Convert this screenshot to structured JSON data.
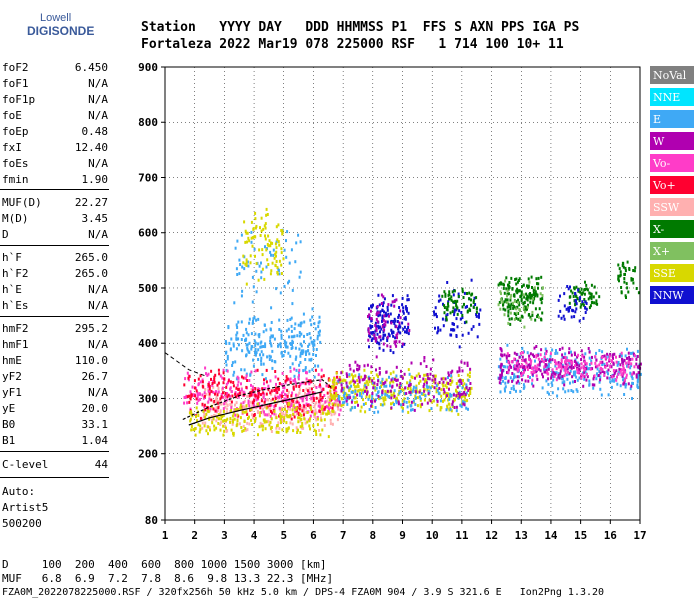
{
  "logo": {
    "line1": "Lowell",
    "line2": "DIGISONDE"
  },
  "header": {
    "line1": "Station   YYYY DAY   DDD HHMMSS P1  FFS S AXN PPS IGA PS",
    "line2": "Fortaleza 2022 Mar19 078 225000 RSF   1 714 100 10+ 11"
  },
  "params": [
    {
      "k": "foF2",
      "v": "6.450"
    },
    {
      "k": "foF1",
      "v": "N/A"
    },
    {
      "k": "foF1p",
      "v": "N/A"
    },
    {
      "k": "foE",
      "v": "N/A"
    },
    {
      "k": "foEp",
      "v": "0.48"
    },
    {
      "k": "fxI",
      "v": "12.40"
    },
    {
      "k": "foEs",
      "v": "N/A"
    },
    {
      "k": "fmin",
      "v": "1.90"
    },
    {
      "k": "MUF(D)",
      "v": "22.27"
    },
    {
      "k": "M(D)",
      "v": "3.45"
    },
    {
      "k": "D",
      "v": "N/A"
    },
    {
      "k": "h`F",
      "v": "265.0"
    },
    {
      "k": "h`F2",
      "v": "265.0"
    },
    {
      "k": "h`E",
      "v": "N/A"
    },
    {
      "k": "h`Es",
      "v": "N/A"
    },
    {
      "k": "hmF2",
      "v": "295.2"
    },
    {
      "k": "hmF1",
      "v": "N/A"
    },
    {
      "k": "hmE",
      "v": "110.0"
    },
    {
      "k": "yF2",
      "v": "26.7"
    },
    {
      "k": "yF1",
      "v": "N/A"
    },
    {
      "k": "yE",
      "v": "20.0"
    },
    {
      "k": "B0",
      "v": "33.1"
    },
    {
      "k": "B1",
      "v": "1.04"
    },
    {
      "k": "C-level",
      "v": "44"
    }
  ],
  "auto": {
    "l1": "Auto:",
    "l2": "Artist5",
    "l3": "500200"
  },
  "footer": {
    "l1": "D     100  200  400  600  800 1000 1500 3000 [km]",
    "l2": "MUF   6.8  6.9  7.2  7.8  8.6  9.8 13.3 22.3 [MHz]",
    "l3": "FZA0M_2022078225000.RSF / 320fx256h 50 kHz 5.0 km / DPS-4 FZA0M 904 / 3.9 S 321.6 E   Ion2Png 1.3.20"
  },
  "legend": [
    {
      "label": "NoVal",
      "color": "#808080"
    },
    {
      "label": "NNE",
      "color": "#00e5ff"
    },
    {
      "label": "E",
      "color": "#3fa9f5"
    },
    {
      "label": "W",
      "color": "#b000b0"
    },
    {
      "label": "Vo-",
      "color": "#ff3cc8"
    },
    {
      "label": "Vo+",
      "color": "#ff0030"
    },
    {
      "label": "SSW",
      "color": "#ffb0b0"
    },
    {
      "label": "X-",
      "color": "#007a00"
    },
    {
      "label": "X+",
      "color": "#80c060"
    },
    {
      "label": "SSE",
      "color": "#d8d800"
    },
    {
      "label": "NNW",
      "color": "#1010d0"
    }
  ],
  "chart_data": {
    "type": "scatter",
    "x_label": "",
    "y_label": "",
    "x_range": [
      1,
      17
    ],
    "y_range": [
      80,
      900
    ],
    "x_ticks": [
      "1",
      "2",
      "3",
      "4",
      "5",
      "6",
      "7",
      "8",
      "9",
      "10",
      "11",
      "12",
      "13",
      "14",
      "15",
      "16",
      "17"
    ],
    "y_ticks": [
      {
        "v": 900,
        "label": "900"
      },
      {
        "v": 800,
        "label": "800"
      },
      {
        "v": 700,
        "label": "700"
      },
      {
        "v": 600,
        "label": "600"
      },
      {
        "v": 500,
        "label": "500"
      },
      {
        "v": 400,
        "label": "400"
      },
      {
        "v": 300,
        "label": "300"
      },
      {
        "v": 200,
        "label": "200"
      },
      {
        "v": 80,
        "label": "80"
      }
    ],
    "grid": true,
    "clusters": [
      {
        "series": "E",
        "x": [
          3.0,
          6.2
        ],
        "y": [
          330,
          470
        ],
        "n": 260
      },
      {
        "series": "E",
        "x": [
          3.3,
          5.6
        ],
        "y": [
          470,
          620
        ],
        "n": 60
      },
      {
        "series": "SSE",
        "x": [
          3.6,
          5.0
        ],
        "y": [
          500,
          660
        ],
        "n": 90
      },
      {
        "series": "SSW",
        "x": [
          2.2,
          6.8
        ],
        "y": [
          240,
          330
        ],
        "n": 320
      },
      {
        "series": "Vo-",
        "x": [
          1.6,
          6.9
        ],
        "y": [
          260,
          360
        ],
        "n": 300
      },
      {
        "series": "Vo+",
        "x": [
          1.6,
          6.9
        ],
        "y": [
          260,
          360
        ],
        "n": 220
      },
      {
        "series": "SSE",
        "x": [
          1.8,
          6.5
        ],
        "y": [
          230,
          300
        ],
        "n": 200
      },
      {
        "series": "SSE",
        "x": [
          6.5,
          11.3
        ],
        "y": [
          270,
          360
        ],
        "n": 320
      },
      {
        "series": "E",
        "x": [
          6.8,
          11.2
        ],
        "y": [
          270,
          350
        ],
        "n": 150
      },
      {
        "series": "W",
        "x": [
          6.8,
          11.3
        ],
        "y": [
          280,
          380
        ],
        "n": 180
      },
      {
        "series": "NNW",
        "x": [
          7.8,
          9.2
        ],
        "y": [
          380,
          500
        ],
        "n": 140
      },
      {
        "series": "W",
        "x": [
          7.8,
          9.2
        ],
        "y": [
          380,
          500
        ],
        "n": 60
      },
      {
        "series": "NNW",
        "x": [
          10.0,
          11.6
        ],
        "y": [
          380,
          520
        ],
        "n": 70
      },
      {
        "series": "X-",
        "x": [
          10.3,
          11.5
        ],
        "y": [
          440,
          510
        ],
        "n": 60
      },
      {
        "series": "X-",
        "x": [
          12.2,
          13.7
        ],
        "y": [
          430,
          530
        ],
        "n": 160
      },
      {
        "series": "X+",
        "x": [
          12.2,
          13.7
        ],
        "y": [
          430,
          520
        ],
        "n": 40
      },
      {
        "series": "E",
        "x": [
          12.2,
          17.0
        ],
        "y": [
          300,
          400
        ],
        "n": 260
      },
      {
        "series": "W",
        "x": [
          12.2,
          17.0
        ],
        "y": [
          320,
          400
        ],
        "n": 260
      },
      {
        "series": "Vo-",
        "x": [
          12.5,
          16.8
        ],
        "y": [
          330,
          390
        ],
        "n": 150
      },
      {
        "series": "X-",
        "x": [
          14.6,
          15.6
        ],
        "y": [
          460,
          520
        ],
        "n": 60
      },
      {
        "series": "X-",
        "x": [
          16.2,
          17.0
        ],
        "y": [
          480,
          560
        ],
        "n": 40
      },
      {
        "series": "NNW",
        "x": [
          14.2,
          15.2
        ],
        "y": [
          430,
          510
        ],
        "n": 40
      }
    ],
    "profile": [
      [
        1.8,
        252
      ],
      [
        2.5,
        265
      ],
      [
        3.5,
        278
      ],
      [
        4.5,
        290
      ],
      [
        5.5,
        302
      ],
      [
        6.3,
        312
      ]
    ],
    "trace": [
      [
        1.6,
        262
      ],
      [
        2.5,
        285
      ],
      [
        3.5,
        305
      ],
      [
        4.5,
        318
      ],
      [
        5.5,
        328
      ],
      [
        6.3,
        334
      ],
      [
        6.6,
        320
      ]
    ],
    "dashed": [
      [
        1.0,
        383
      ],
      [
        1.8,
        352
      ],
      [
        2.4,
        340
      ]
    ]
  }
}
